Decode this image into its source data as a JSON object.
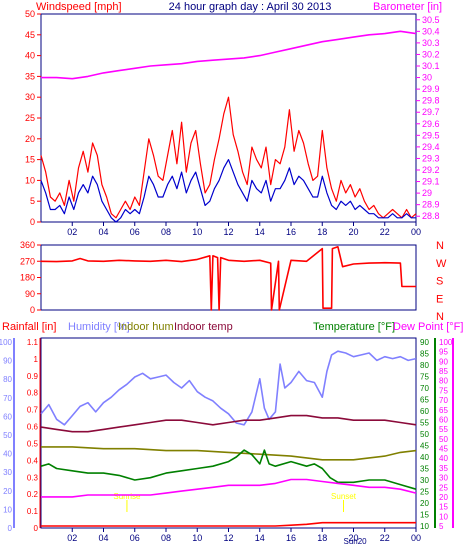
{
  "chart_data": [
    {
      "type": "line",
      "title": "24 hour graph day : April 30 2013",
      "left_label": "Windspeed [mph]",
      "right_label": "Barometer [in]",
      "x_ticks": [
        "02",
        "04",
        "06",
        "08",
        "10",
        "12",
        "14",
        "16",
        "18",
        "20",
        "22",
        "00"
      ],
      "y_left_ticks": [
        "0",
        "5",
        "10",
        "15",
        "20",
        "25",
        "30",
        "35",
        "40",
        "45",
        "50"
      ],
      "y_left_range": [
        0,
        50
      ],
      "y_right_ticks": [
        "28.8",
        "28.9",
        "29",
        "29.1",
        "29.2",
        "29.3",
        "29.4",
        "29.5",
        "29.6",
        "29.7",
        "29.8",
        "29.9",
        "30",
        "30.1",
        "30.2",
        "30.3",
        "30.4",
        "30.5"
      ],
      "y_right_range": [
        28.75,
        30.55
      ],
      "x_range_hours": [
        0,
        24
      ],
      "series": [
        {
          "name": "Windspeed [mph]",
          "color": "#ff0000",
          "role": "gust",
          "x": [
            0,
            0.3,
            0.6,
            0.9,
            1.2,
            1.5,
            1.8,
            2.1,
            2.4,
            2.7,
            3.0,
            3.3,
            3.6,
            3.9,
            4.2,
            4.5,
            4.8,
            5.1,
            5.4,
            5.7,
            6.0,
            6.3,
            6.6,
            6.9,
            7.2,
            7.5,
            7.8,
            8.1,
            8.4,
            8.7,
            9.0,
            9.3,
            9.6,
            9.9,
            10.2,
            10.5,
            10.8,
            11.1,
            11.4,
            11.7,
            12.0,
            12.3,
            12.6,
            12.9,
            13.2,
            13.5,
            13.8,
            14.1,
            14.4,
            14.7,
            15.0,
            15.3,
            15.6,
            15.9,
            16.2,
            16.5,
            16.8,
            17.1,
            17.4,
            17.7,
            18.0,
            18.3,
            18.6,
            18.9,
            19.2,
            19.5,
            19.8,
            20.1,
            20.4,
            20.7,
            21.0,
            21.3,
            21.6,
            21.9,
            22.2,
            22.5,
            22.8,
            23.1,
            23.4,
            23.7,
            24.0
          ],
          "values": [
            16,
            12,
            6,
            5,
            7,
            4,
            10,
            5,
            13,
            17,
            12,
            19,
            16,
            9,
            6,
            2,
            1,
            3,
            5,
            3,
            6,
            4,
            12,
            20,
            16,
            11,
            10,
            16,
            22,
            14,
            24,
            12,
            19,
            22,
            14,
            7,
            9,
            15,
            20,
            26,
            30,
            21,
            17,
            12,
            9,
            18,
            15,
            13,
            18,
            9,
            15,
            14,
            18,
            27,
            17,
            22,
            19,
            14,
            10,
            11,
            22,
            13,
            8,
            5,
            10,
            7,
            9,
            6,
            8,
            5,
            3,
            4,
            2,
            1,
            2,
            3,
            2,
            1,
            3,
            1,
            2
          ]
        },
        {
          "name": "Average wind",
          "color": "#0000cc",
          "role": "average",
          "x": [
            0,
            0.3,
            0.6,
            0.9,
            1.2,
            1.5,
            1.8,
            2.1,
            2.4,
            2.7,
            3.0,
            3.3,
            3.6,
            3.9,
            4.2,
            4.5,
            4.8,
            5.1,
            5.4,
            5.7,
            6.0,
            6.3,
            6.6,
            6.9,
            7.2,
            7.5,
            7.8,
            8.1,
            8.4,
            8.7,
            9.0,
            9.3,
            9.6,
            9.9,
            10.2,
            10.5,
            10.8,
            11.1,
            11.4,
            11.7,
            12.0,
            12.3,
            12.6,
            12.9,
            13.2,
            13.5,
            13.8,
            14.1,
            14.4,
            14.7,
            15.0,
            15.3,
            15.6,
            15.9,
            16.2,
            16.5,
            16.8,
            17.1,
            17.4,
            17.7,
            18.0,
            18.3,
            18.6,
            18.9,
            19.2,
            19.5,
            19.8,
            20.1,
            20.4,
            20.7,
            21.0,
            21.3,
            21.6,
            21.9,
            22.2,
            22.5,
            22.8,
            23.1,
            23.4,
            23.7,
            24.0
          ],
          "values": [
            10,
            7,
            3,
            3,
            4,
            2,
            6,
            3,
            7,
            9,
            7,
            11,
            9,
            5,
            3,
            1,
            0,
            1,
            3,
            2,
            3,
            2,
            6,
            11,
            9,
            6,
            6,
            9,
            11,
            8,
            12,
            7,
            10,
            12,
            8,
            4,
            5,
            8,
            10,
            13,
            15,
            12,
            9,
            7,
            5,
            10,
            8,
            7,
            10,
            5,
            8,
            8,
            10,
            13,
            9,
            11,
            10,
            8,
            6,
            6,
            11,
            7,
            4,
            3,
            5,
            4,
            5,
            3,
            4,
            3,
            2,
            2,
            1,
            1,
            1,
            2,
            1,
            1,
            2,
            1,
            1
          ]
        },
        {
          "name": "Barometer [in]",
          "color": "#ff00ff",
          "axis": "right",
          "x": [
            0,
            1,
            2,
            3,
            4,
            5,
            6,
            7,
            8,
            9,
            10,
            11,
            12,
            13,
            14,
            15,
            16,
            17,
            18,
            19,
            20,
            21,
            22,
            23,
            24
          ],
          "values": [
            30.0,
            30.0,
            29.99,
            30.01,
            30.04,
            30.06,
            30.08,
            30.1,
            30.11,
            30.12,
            30.14,
            30.15,
            30.16,
            30.17,
            30.19,
            30.22,
            30.25,
            30.28,
            30.31,
            30.33,
            30.35,
            30.37,
            30.38,
            30.4,
            30.38
          ]
        }
      ]
    },
    {
      "type": "line",
      "x_ticks": [
        "02",
        "04",
        "06",
        "08",
        "10",
        "12",
        "14",
        "16",
        "18",
        "20",
        "22",
        "00"
      ],
      "y_ticks": [
        "0",
        "90",
        "180",
        "270",
        "360"
      ],
      "y_range": [
        0,
        360
      ],
      "right_labels": [
        "N",
        "W",
        "S",
        "E",
        "N"
      ],
      "series": [
        {
          "name": "Wind direction",
          "color": "#ff0000",
          "x": [
            0,
            1,
            2,
            2.5,
            3,
            4,
            5,
            6,
            7,
            8,
            9,
            10,
            10.8,
            10.9,
            11.0,
            11.3,
            11.4,
            11.5,
            12,
            13,
            14,
            14.7,
            14.75,
            15.2,
            15.25,
            16,
            17,
            18,
            18.05,
            18.6,
            18.65,
            19,
            19.3,
            20,
            21,
            22,
            23,
            23.1,
            24
          ],
          "values": [
            270,
            268,
            272,
            285,
            272,
            270,
            275,
            272,
            270,
            275,
            268,
            280,
            300,
            0,
            300,
            290,
            0,
            290,
            275,
            270,
            275,
            260,
            0,
            270,
            0,
            275,
            270,
            340,
            10,
            10,
            340,
            350,
            240,
            255,
            260,
            262,
            260,
            130,
            130
          ]
        }
      ]
    },
    {
      "type": "line",
      "labels": {
        "rainfall": "Rainfall [in]",
        "humidity": "Humidity [%]",
        "indoor_hum": "Indoor hum",
        "indoor_temp": "Indoor temp",
        "temperature": "Temperature [°F]",
        "dew_point": "Dew Point [°F]",
        "sunrise": "Sunrise",
        "sunset": "Sunset",
        "sun_tag": "Sun20"
      },
      "x_ticks": [
        "02",
        "04",
        "06",
        "08",
        "10",
        "12",
        "14",
        "16",
        "18",
        "20",
        "22",
        "00"
      ],
      "rain_ticks": [
        "0",
        "0.1",
        "0.2",
        "0.3",
        "0.4",
        "0.5",
        "0.6",
        "0.7",
        "0.8",
        "0.9",
        "1",
        "1.1"
      ],
      "rain_range": [
        0,
        1.1
      ],
      "hum_ticks": [
        "0",
        "10",
        "20",
        "30",
        "40",
        "50",
        "60",
        "70",
        "80",
        "90",
        "100"
      ],
      "hum_range": [
        0,
        100
      ],
      "temp_ticks": [
        "10",
        "15",
        "20",
        "25",
        "30",
        "35",
        "40",
        "45",
        "50",
        "55",
        "60",
        "65",
        "70",
        "75",
        "80",
        "85",
        "90"
      ],
      "temp_range": [
        10,
        90
      ],
      "dew_ticks": [
        "5",
        "10",
        "15",
        "20",
        "25",
        "30",
        "35",
        "40",
        "45",
        "50",
        "55",
        "60",
        "65",
        "70",
        "75",
        "80",
        "85",
        "90",
        "95",
        "100"
      ],
      "dew_range": [
        5,
        100
      ],
      "series": [
        {
          "name": "Humidity [%]",
          "color": "#8080ff",
          "axis": "humidity",
          "x": [
            0,
            0.5,
            1,
            1.5,
            2,
            2.5,
            3,
            3.5,
            4,
            4.5,
            5,
            5.5,
            6,
            6.5,
            7,
            7.5,
            8,
            8.5,
            9,
            9.5,
            10,
            10.5,
            11,
            11.5,
            12,
            12.5,
            13,
            13.5,
            14,
            14.3,
            14.6,
            15,
            15.3,
            15.6,
            16,
            16.5,
            17,
            17.5,
            18,
            18.3,
            18.6,
            19,
            19.5,
            20,
            20.5,
            21,
            21.5,
            22,
            22.5,
            23,
            23.5,
            24
          ],
          "values": [
            61,
            66,
            58,
            55,
            60,
            65,
            67,
            62,
            67,
            70,
            74,
            77,
            81,
            83,
            80,
            81,
            82,
            78,
            75,
            79,
            73,
            70,
            68,
            64,
            61,
            56,
            55,
            62,
            80,
            64,
            58,
            62,
            88,
            75,
            78,
            84,
            79,
            78,
            70,
            84,
            93,
            95,
            94,
            92,
            93,
            94,
            90,
            92,
            91,
            92,
            90,
            91
          ]
        },
        {
          "name": "Indoor temp",
          "color": "#8b0a3a",
          "axis": "temperature",
          "x": [
            0,
            1,
            2,
            3,
            4,
            5,
            6,
            7,
            8,
            9,
            10,
            11,
            12,
            13,
            14,
            15,
            16,
            17,
            18,
            19,
            20,
            21,
            22,
            23,
            24
          ],
          "values": [
            53,
            52,
            51,
            51,
            52,
            53,
            54,
            55,
            56,
            56,
            55,
            54,
            55,
            56,
            56,
            57,
            58,
            58,
            57,
            57,
            56,
            56,
            56,
            55,
            54
          ]
        },
        {
          "name": "Indoor hum",
          "color": "#808000",
          "axis": "humidity",
          "x": [
            0,
            2,
            4,
            6,
            8,
            10,
            12,
            14,
            16,
            18,
            19,
            20,
            21,
            22,
            23,
            24
          ],
          "values": [
            43,
            43,
            42,
            42,
            41,
            41,
            40,
            39,
            38,
            36,
            36,
            36,
            37,
            38,
            40,
            41
          ]
        },
        {
          "name": "Temperature [°F]",
          "color": "#008000",
          "axis": "temperature",
          "x": [
            0,
            0.5,
            1,
            2,
            3,
            4,
            5,
            6,
            7,
            8,
            9,
            10,
            11,
            12,
            12.5,
            13,
            13.5,
            14,
            14.3,
            14.6,
            15,
            16,
            17,
            17.5,
            18,
            18.5,
            19,
            20,
            21,
            22,
            23,
            24
          ],
          "values": [
            36,
            37,
            35,
            34,
            33,
            33,
            32,
            30,
            31,
            33,
            34,
            35,
            36,
            38,
            40,
            43,
            41,
            37,
            43,
            37,
            36,
            38,
            36,
            37,
            35,
            31,
            29,
            29,
            30,
            30,
            28,
            26
          ]
        },
        {
          "name": "Dew Point [°F]",
          "color": "#ff00ff",
          "axis": "dewpoint",
          "x": [
            0,
            1,
            2,
            3,
            4,
            5,
            6,
            7,
            8,
            9,
            10,
            11,
            12,
            13,
            14,
            15,
            16,
            17,
            18,
            19,
            20,
            21,
            22,
            23,
            24
          ],
          "values": [
            20,
            20,
            20,
            21,
            21,
            21,
            21,
            21,
            22,
            23,
            24,
            25,
            26,
            26,
            26,
            27,
            29,
            29,
            28,
            27,
            26,
            25,
            25,
            24,
            22
          ]
        },
        {
          "name": "Rainfall [in]",
          "color": "#ff0000",
          "axis": "rain",
          "x": [
            0,
            15,
            16,
            17,
            18,
            24
          ],
          "values": [
            0,
            0,
            0.005,
            0.01,
            0.02,
            0.02
          ]
        }
      ]
    }
  ]
}
